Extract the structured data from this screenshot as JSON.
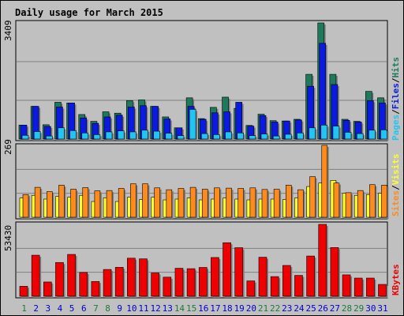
{
  "title": "Daily usage for March 2015",
  "colors": {
    "hits": "#1e7a5a",
    "files": "#0a1ae0",
    "pages": "#22c4f4",
    "visits": "#ffff2a",
    "sites": "#ff8a1e",
    "kbytes": "#ee0000",
    "weekend_label": "#1e7a3a",
    "weekday_label": "#0000cc",
    "title": "#0000cc"
  },
  "legend": {
    "pages": "Pages",
    "files": "Files",
    "hits": "Hits",
    "sites": "Sites",
    "visits": "Visits",
    "kbytes": "KBytes",
    "sep": "/"
  },
  "chart_data": [
    {
      "type": "bar",
      "title": "Daily usage for March 2015",
      "ymax_label": "3409",
      "ylim": [
        0,
        3409
      ],
      "categories": [
        "1",
        "2",
        "3",
        "4",
        "5",
        "6",
        "7",
        "8",
        "9",
        "10",
        "11",
        "12",
        "13",
        "14",
        "15",
        "16",
        "17",
        "18",
        "19",
        "20",
        "21",
        "22",
        "23",
        "24",
        "25",
        "26",
        "27",
        "28",
        "29",
        "30",
        "31"
      ],
      "weekend_days": [
        "1",
        "7",
        "8",
        "14",
        "15",
        "21",
        "22",
        "28",
        "29"
      ],
      "series": [
        {
          "name": "Hits",
          "values": [
            410,
            960,
            420,
            1080,
            1060,
            720,
            520,
            800,
            760,
            1130,
            1150,
            960,
            650,
            330,
            1210,
            600,
            930,
            1230,
            900,
            400,
            730,
            540,
            530,
            580,
            1900,
            3409,
            1900,
            580,
            520,
            1400,
            1210
          ]
        },
        {
          "name": "Files",
          "values": [
            410,
            960,
            370,
            940,
            1060,
            620,
            460,
            650,
            700,
            940,
            980,
            960,
            590,
            330,
            960,
            580,
            770,
            800,
            1080,
            380,
            690,
            500,
            530,
            560,
            1550,
            2810,
            1600,
            550,
            500,
            1130,
            1060
          ]
        },
        {
          "name": "Pages",
          "values": [
            110,
            220,
            90,
            330,
            250,
            180,
            130,
            210,
            240,
            210,
            260,
            230,
            170,
            100,
            870,
            160,
            130,
            210,
            180,
            100,
            150,
            90,
            140,
            180,
            330,
            410,
            380,
            200,
            160,
            260,
            270
          ]
        }
      ]
    },
    {
      "type": "bar",
      "ymax_label": "269",
      "ylim": [
        0,
        269
      ],
      "categories": [
        "1",
        "2",
        "3",
        "4",
        "5",
        "6",
        "7",
        "8",
        "9",
        "10",
        "11",
        "12",
        "13",
        "14",
        "15",
        "16",
        "17",
        "18",
        "19",
        "20",
        "21",
        "22",
        "23",
        "24",
        "25",
        "26",
        "27",
        "28",
        "29",
        "30",
        "31"
      ],
      "series": [
        {
          "name": "Visits",
          "values": [
            72,
            82,
            68,
            78,
            75,
            82,
            59,
            73,
            59,
            75,
            66,
            75,
            65,
            68,
            72,
            65,
            68,
            72,
            68,
            65,
            68,
            68,
            66,
            72,
            115,
            128,
            138,
            90,
            82,
            85,
            90
          ]
        },
        {
          "name": "Sites",
          "values": [
            85,
            112,
            96,
            120,
            105,
            111,
            99,
            100,
            108,
            125,
            125,
            110,
            103,
            108,
            112,
            105,
            110,
            109,
            108,
            110,
            104,
            105,
            120,
            103,
            152,
            269,
            128,
            92,
            100,
            122,
            120
          ]
        }
      ]
    },
    {
      "type": "bar",
      "ymax_label": "53430",
      "ylim": [
        0,
        53430
      ],
      "categories": [
        "1",
        "2",
        "3",
        "4",
        "5",
        "6",
        "7",
        "8",
        "9",
        "10",
        "11",
        "12",
        "13",
        "14",
        "15",
        "16",
        "17",
        "18",
        "19",
        "20",
        "21",
        "22",
        "23",
        "24",
        "25",
        "26",
        "27",
        "28",
        "29",
        "30",
        "31"
      ],
      "series": [
        {
          "name": "KBytes",
          "values": [
            7400,
            30500,
            10600,
            25100,
            31100,
            17700,
            11000,
            19900,
            21500,
            28300,
            27800,
            17300,
            14200,
            20800,
            20500,
            21400,
            28800,
            39800,
            36100,
            11400,
            29000,
            14600,
            22900,
            15500,
            29900,
            53430,
            36200,
            15900,
            13500,
            13500,
            8800
          ]
        }
      ]
    }
  ]
}
